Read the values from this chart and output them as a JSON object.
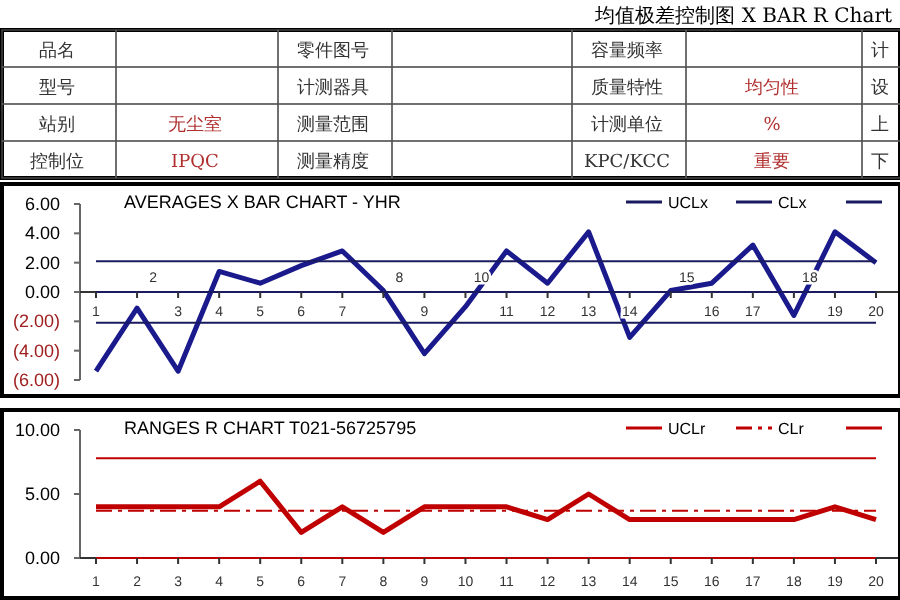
{
  "chart_data": [
    {
      "type": "other",
      "title": "均值极差控制图 X BAR R Chart",
      "cell_labels": [
        [
          "品名",
          null,
          "零件图号",
          null,
          "容量频率",
          null,
          "计"
        ],
        [
          "型号",
          null,
          "计测器具",
          null,
          "质量特性",
          "均匀性",
          "设"
        ],
        [
          "站别",
          "无尘室",
          "测量范围",
          null,
          "计测单位",
          "%",
          "上"
        ],
        [
          "控制位",
          "IPQC",
          "测量精度",
          null,
          "KPC/KCC",
          "重要",
          "下"
        ]
      ]
    },
    {
      "type": "line",
      "title": "AVERAGES X BAR CHART - YHR",
      "categories": [
        "1",
        "2",
        "3",
        "4",
        "5",
        "6",
        "7",
        "8",
        "9",
        "10",
        "11",
        "12",
        "13",
        "14",
        "15",
        "16",
        "17",
        "18",
        "19",
        "20"
      ],
      "ylim": [
        -6,
        6
      ],
      "yticks": [
        {
          "value": 6,
          "label": "6.00"
        },
        {
          "value": 4,
          "label": "4.00"
        },
        {
          "value": 2,
          "label": "2.00"
        },
        {
          "value": 0,
          "label": "0.00"
        },
        {
          "value": -2,
          "label": "(2.00)"
        },
        {
          "value": -4,
          "label": "(4.00)"
        },
        {
          "value": -6,
          "label": "(6.00)"
        }
      ],
      "legend": "top right",
      "series": [
        {
          "color": "#1a1a8c",
          "values": [
            -5.4,
            -1.1,
            -5.4,
            1.4,
            0.6,
            1.8,
            2.8,
            0.1,
            -4.2,
            -1.0,
            2.8,
            0.6,
            4.1,
            -3.1,
            0.1,
            0.6,
            3.2,
            -1.6,
            4.1,
            2.0
          ]
        },
        {
          "name": "UCLx",
          "color": "#1a1a5e",
          "values": [
            2.1,
            2.1,
            2.1,
            2.1,
            2.1,
            2.1,
            2.1,
            2.1,
            2.1,
            2.1,
            2.1,
            2.1,
            2.1,
            2.1,
            2.1,
            2.1,
            2.1,
            2.1,
            2.1,
            2.1
          ]
        },
        {
          "name": "CLx",
          "color": "#1a1a5e",
          "values": [
            0,
            0,
            0,
            0,
            0,
            0,
            0,
            0,
            0,
            0,
            0,
            0,
            0,
            0,
            0,
            0,
            0,
            0,
            0,
            0
          ]
        },
        {
          "color": "#1a1a5e",
          "values": [
            -2.1,
            -2.1,
            -2.1,
            -2.1,
            -2.1,
            -2.1,
            -2.1,
            -2.1,
            -2.1,
            -2.1,
            -2.1,
            -2.1,
            -2.1,
            -2.1,
            -2.1,
            -2.1,
            -2.1,
            -2.1,
            -2.1,
            -2.1
          ]
        }
      ]
    },
    {
      "type": "line",
      "title": "RANGES R CHART T021-56725795",
      "categories": [
        "1",
        "2",
        "3",
        "4",
        "5",
        "6",
        "7",
        "8",
        "9",
        "10",
        "11",
        "12",
        "13",
        "14",
        "15",
        "16",
        "17",
        "18",
        "19",
        "20"
      ],
      "ylim": [
        0,
        10
      ],
      "yticks": [
        {
          "value": 10,
          "label": "10.00"
        },
        {
          "value": 5,
          "label": "5.00"
        },
        {
          "value": 0,
          "label": "0.00"
        }
      ],
      "legend": "top right",
      "series": [
        {
          "color": "#c00000",
          "values": [
            4,
            4,
            4,
            4,
            6,
            2,
            4,
            2,
            4,
            4,
            4,
            3,
            5,
            3,
            3,
            3,
            3,
            3,
            4,
            3
          ]
        },
        {
          "name": "UCLr",
          "color": "#c00000",
          "values": [
            7.8,
            7.8,
            7.8,
            7.8,
            7.8,
            7.8,
            7.8,
            7.8,
            7.8,
            7.8,
            7.8,
            7.8,
            7.8,
            7.8,
            7.8,
            7.8,
            7.8,
            7.8,
            7.8,
            7.8
          ]
        },
        {
          "name": "CLr",
          "color": "#c00000",
          "line_style": "dashed",
          "values": [
            3.7,
            3.7,
            3.7,
            3.7,
            3.7,
            3.7,
            3.7,
            3.7,
            3.7,
            3.7,
            3.7,
            3.7,
            3.7,
            3.7,
            3.7,
            3.7,
            3.7,
            3.7,
            3.7,
            3.7
          ]
        },
        {
          "color": "#c00000",
          "values": [
            0,
            0,
            0,
            0,
            0,
            0,
            0,
            0,
            0,
            0,
            0,
            0,
            0,
            0,
            0,
            0,
            0,
            0,
            0,
            0
          ]
        }
      ]
    }
  ]
}
